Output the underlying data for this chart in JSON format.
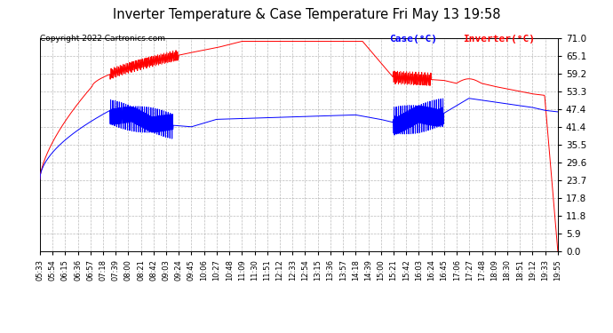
{
  "title": "Inverter Temperature & Case Temperature Fri May 13 19:58",
  "copyright": "Copyright 2022 Cartronics.com",
  "legend_case": "Case(°C)",
  "legend_inverter": "Inverter(°C)",
  "background_color": "#ffffff",
  "plot_bg_color": "#ffffff",
  "grid_color": "#aaaaaa",
  "case_color": "blue",
  "inverter_color": "red",
  "ylim": [
    0.0,
    71.0
  ],
  "yticks": [
    0.0,
    5.9,
    11.8,
    17.8,
    23.7,
    29.6,
    35.5,
    41.4,
    47.4,
    53.3,
    59.2,
    65.1,
    71.0
  ],
  "x_labels": [
    "05:33",
    "05:54",
    "06:15",
    "06:36",
    "06:57",
    "07:18",
    "07:39",
    "08:00",
    "08:21",
    "08:42",
    "09:03",
    "09:24",
    "09:45",
    "10:06",
    "10:27",
    "10:48",
    "11:09",
    "11:30",
    "11:51",
    "12:12",
    "12:33",
    "12:54",
    "13:15",
    "13:36",
    "13:57",
    "14:18",
    "14:39",
    "15:00",
    "15:21",
    "15:42",
    "16:03",
    "16:24",
    "16:45",
    "17:06",
    "17:27",
    "17:48",
    "18:09",
    "18:30",
    "18:51",
    "19:12",
    "19:33",
    "19:55"
  ]
}
